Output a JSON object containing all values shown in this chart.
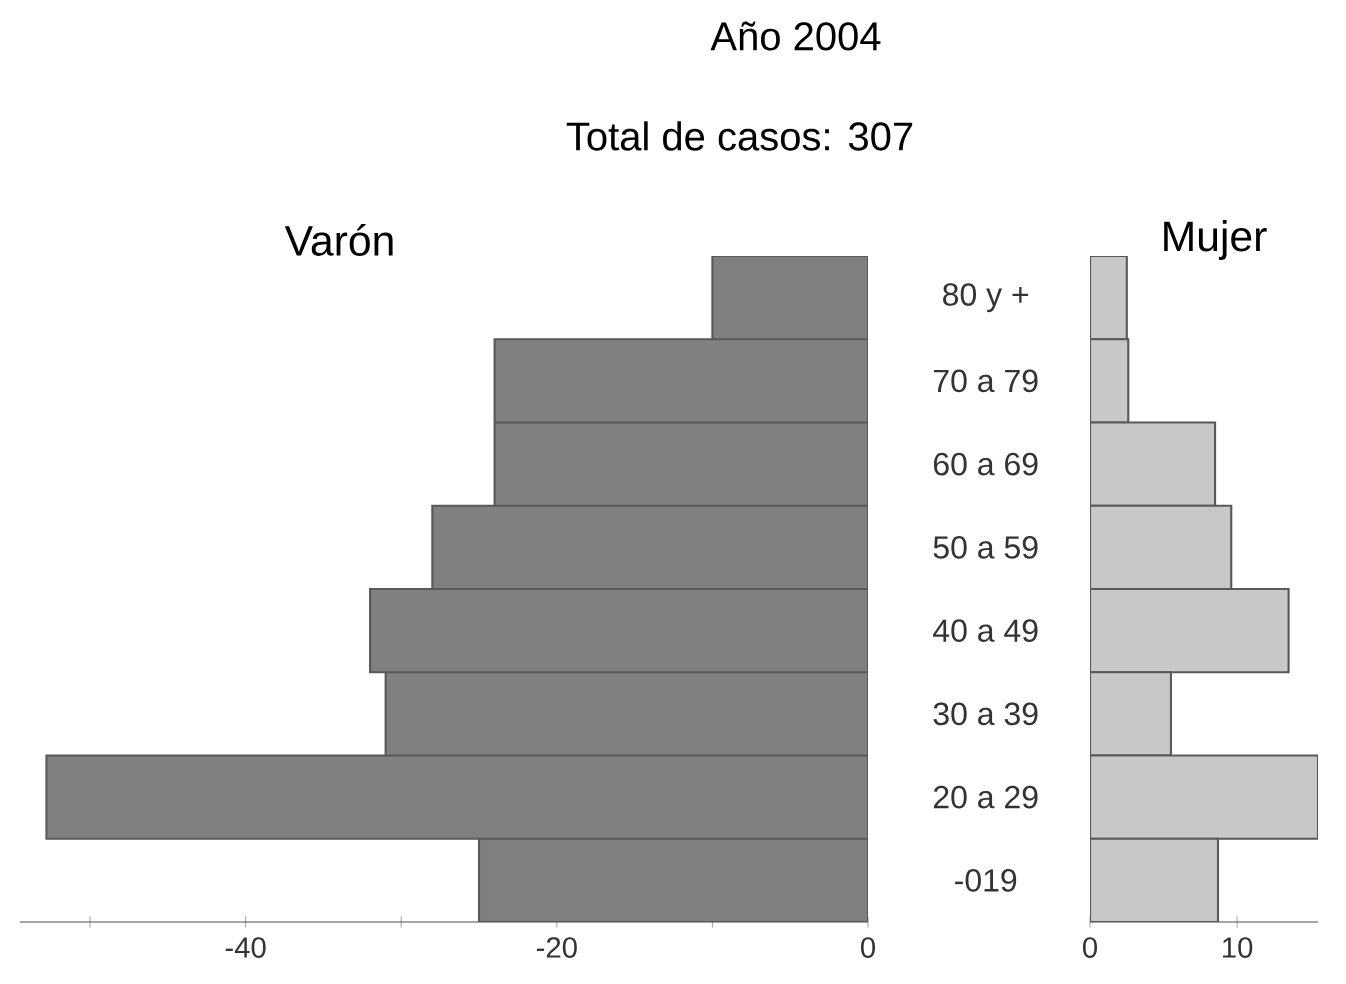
{
  "chart_data": [
    {
      "type": "bar",
      "orientation": "horizontal",
      "title": "Año 2004",
      "subtitle": "Total de casos: 307",
      "categories": [
        "80 y +",
        "70 a 79",
        "60 a 69",
        "50 a 59",
        "40 a 49",
        "30 a 39",
        "20 a 29",
        "-019"
      ],
      "series": [
        {
          "name": "Varón",
          "color": "#808080",
          "values": [
            -10,
            -24,
            -24,
            -28,
            -32,
            -31,
            -52.8,
            -25
          ]
        }
      ],
      "xlim": [
        -54.5,
        0
      ],
      "xticks": [
        {
          "value": -50,
          "label": null
        },
        -40,
        {
          "value": -30,
          "label": null
        },
        -20,
        {
          "value": -10,
          "label": null
        },
        0
      ]
    },
    {
      "type": "bar",
      "orientation": "horizontal",
      "tick_labels": "x",
      "categories": [
        null,
        null,
        null,
        null,
        null,
        null,
        null,
        null
      ],
      "series": [
        {
          "name": "Mujer",
          "color": "#c8c8c8",
          "values": [
            2.5,
            2.6,
            8.5,
            9.6,
            13.5,
            5.5,
            15.5,
            8.7
          ]
        }
      ],
      "xlim": [
        0,
        15.5
      ],
      "xticks": [
        0,
        10
      ]
    }
  ]
}
